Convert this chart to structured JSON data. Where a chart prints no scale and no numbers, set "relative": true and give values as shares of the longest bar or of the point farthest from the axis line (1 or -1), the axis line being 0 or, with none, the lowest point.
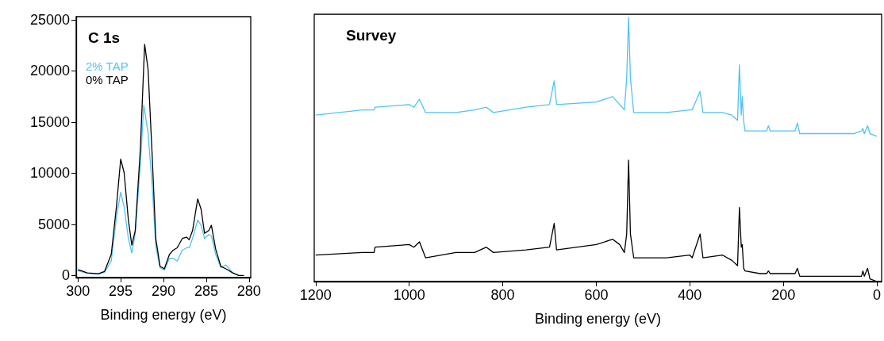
{
  "chart_data": [
    {
      "type": "line",
      "title": "C 1s",
      "xlabel": "Binding energy (eV)",
      "xlim": [
        300.2,
        279.8
      ],
      "xticks": [
        300,
        295,
        290,
        285,
        280
      ],
      "ylim": [
        -200,
        25300
      ],
      "yticks": [
        0,
        5000,
        10000,
        15000,
        20000,
        25000
      ],
      "legend": "top left",
      "marker": "none",
      "series": [
        {
          "name": "2% TAP",
          "color": "#4fc3f7",
          "x": [
            300,
            298.9,
            297.6,
            296.9,
            296.1,
            295.5,
            295.0,
            294.6,
            294.1,
            293.7,
            293.3,
            292.7,
            292.3,
            291.8,
            291.3,
            290.9,
            290.4,
            289.9,
            289.3,
            288.9,
            288.4,
            287.8,
            287.3,
            287.0,
            286.6,
            286.0,
            285.6,
            285.2,
            284.7,
            284.4,
            283.9,
            283.3,
            282.7,
            281.9,
            281.2
          ],
          "values": [
            470,
            210,
            130,
            310,
            1420,
            5680,
            8140,
            6720,
            3620,
            2200,
            4130,
            10850,
            16660,
            13950,
            8520,
            2840,
            780,
            520,
            1680,
            1680,
            1420,
            2450,
            2710,
            2710,
            3620,
            5420,
            4910,
            3620,
            4000,
            3870,
            2070,
            780,
            1030,
            260,
            0
          ]
        },
        {
          "name": "0% TAP",
          "color": "#000000",
          "x": [
            300,
            299.6,
            298.9,
            297.6,
            296.9,
            296.1,
            295.5,
            295.0,
            294.6,
            294.1,
            293.7,
            293.3,
            292.7,
            292.2,
            291.8,
            291.3,
            290.9,
            290.4,
            289.9,
            289.3,
            288.9,
            288.4,
            287.8,
            287.3,
            287.0,
            286.6,
            286.0,
            285.6,
            285.2,
            284.7,
            284.4,
            283.9,
            283.3,
            282.7,
            281.9,
            281.2,
            280.6
          ],
          "values": [
            570,
            470,
            260,
            180,
            390,
            2070,
            6700,
            11370,
            10070,
            5420,
            2970,
            4390,
            12400,
            22600,
            20150,
            11370,
            3620,
            900,
            650,
            2070,
            2450,
            2710,
            3620,
            3750,
            3490,
            4390,
            7490,
            6460,
            4130,
            4390,
            4910,
            2580,
            900,
            650,
            260,
            0,
            0
          ]
        }
      ]
    },
    {
      "type": "line",
      "title": "Survey",
      "xlabel": "Binding energy (eV)",
      "xlim": [
        1203,
        -10
      ],
      "xticks": [
        1200,
        1000,
        800,
        600,
        400,
        200,
        0
      ],
      "relative": true,
      "tick_labels": "x",
      "marker": "none",
      "x": [
        1200,
        1100,
        1075,
        1073,
        1000,
        990,
        978,
        965,
        900,
        860,
        835,
        820,
        750,
        700,
        690,
        685,
        600,
        565,
        550,
        540,
        535,
        531,
        527,
        520,
        500,
        450,
        400,
        395,
        378,
        372,
        330,
        310,
        298,
        294,
        290,
        288,
        285,
        282,
        250,
        236,
        232,
        228,
        175,
        170,
        165,
        100,
        50,
        33,
        30,
        27,
        20,
        15,
        0
      ],
      "series": [
        {
          "color": "#4fc3f7",
          "values": [
            0.63,
            0.65,
            0.65,
            0.66,
            0.67,
            0.66,
            0.69,
            0.64,
            0.64,
            0.65,
            0.66,
            0.64,
            0.66,
            0.67,
            0.76,
            0.67,
            0.68,
            0.7,
            0.67,
            0.65,
            0.77,
            1,
            0.77,
            0.64,
            0.64,
            0.64,
            0.65,
            0.65,
            0.72,
            0.64,
            0.64,
            0.63,
            0.61,
            0.82,
            0.63,
            0.7,
            0.61,
            0.57,
            0.57,
            0.57,
            0.59,
            0.57,
            0.57,
            0.6,
            0.56,
            0.56,
            0.56,
            0.57,
            0.58,
            0.56,
            0.59,
            0.56,
            0.55
          ]
        },
        {
          "color": "#000000",
          "values": [
            0.1,
            0.11,
            0.11,
            0.13,
            0.14,
            0.13,
            0.15,
            0.09,
            0.11,
            0.11,
            0.13,
            0.11,
            0.12,
            0.13,
            0.22,
            0.12,
            0.14,
            0.16,
            0.14,
            0.11,
            0.18,
            0.46,
            0.18,
            0.09,
            0.09,
            0.09,
            0.1,
            0.09,
            0.18,
            0.09,
            0.1,
            0.08,
            0.06,
            0.28,
            0.13,
            0.14,
            0.05,
            0.04,
            0.03,
            0.03,
            0.04,
            0.03,
            0.03,
            0.05,
            0.02,
            0.02,
            0.02,
            0.02,
            0.04,
            0.02,
            0.05,
            0.01,
            0
          ]
        }
      ]
    }
  ]
}
